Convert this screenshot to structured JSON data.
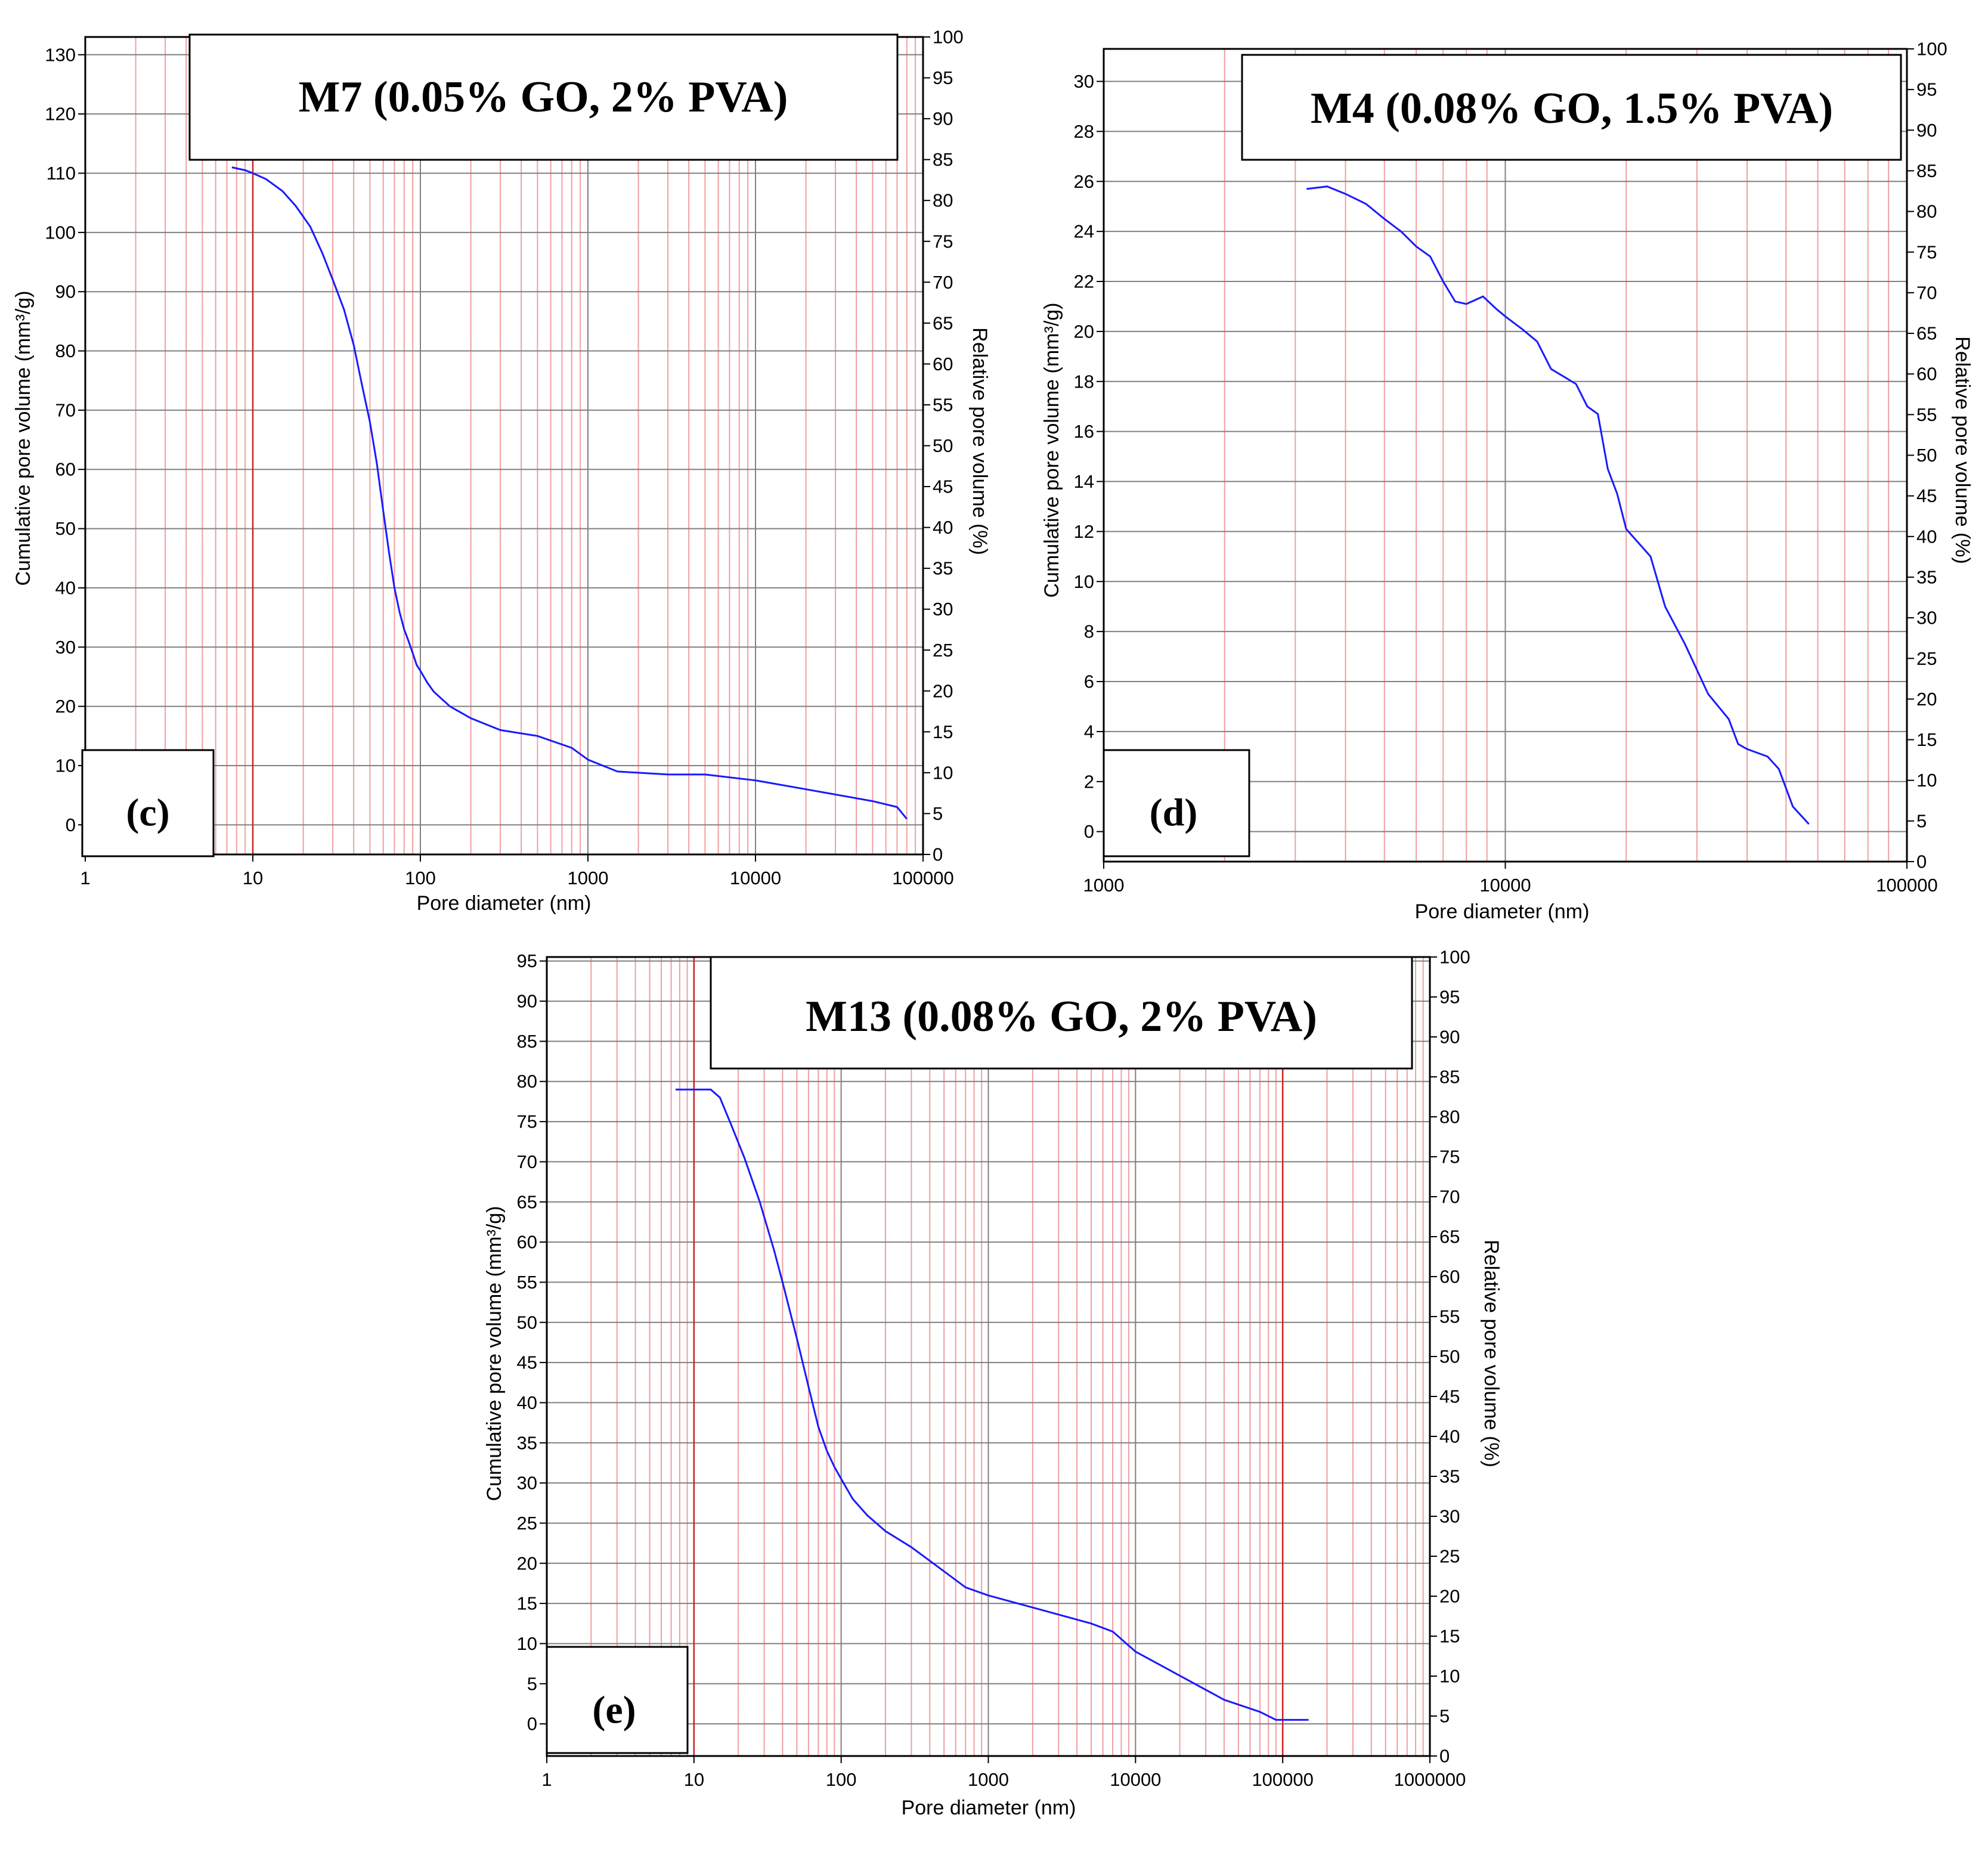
{
  "colors": {
    "curve": "#1a1aff",
    "major_grid": "#808080",
    "minor_grid": "#f0a0a0",
    "highlight_grid": "#cc2222",
    "axis": "#000000",
    "background": "#ffffff"
  },
  "chart_data": [
    {
      "id": "c",
      "type": "line",
      "panel_label": "(c)",
      "title": "M7 (0.05% GO, 2% PVA)",
      "xlabel": "Pore diameter (nm)",
      "ylabel": "Cumulative pore volume (mm³/g)",
      "y2label": "Relative pore volume (%)",
      "xscale": "log",
      "xlim": [
        1,
        100000
      ],
      "ylim": [
        -5,
        133
      ],
      "y2lim": [
        0,
        100
      ],
      "x_ticks": [
        1,
        10,
        100,
        1000,
        10000,
        100000
      ],
      "x_tick_labels": [
        "1",
        "10",
        "100",
        "1000",
        "10000",
        "100000"
      ],
      "y_ticks": [
        0,
        10,
        20,
        30,
        40,
        50,
        60,
        70,
        80,
        90,
        100,
        110,
        120,
        130
      ],
      "y_tick_labels": [
        "0",
        "10",
        "20",
        "30",
        "40",
        "50",
        "60",
        "70",
        "80",
        "90",
        "100",
        "110",
        "120",
        "130"
      ],
      "y2_ticks": [
        0,
        5,
        10,
        15,
        20,
        25,
        30,
        35,
        40,
        45,
        50,
        55,
        60,
        65,
        70,
        75,
        80,
        85,
        90,
        95,
        100
      ],
      "y2_tick_labels": [
        "0",
        "5",
        "10",
        "15",
        "20",
        "25",
        "30",
        "35",
        "40",
        "45",
        "50",
        "55",
        "60",
        "65",
        "70",
        "75",
        "80",
        "85",
        "90",
        "95",
        "100"
      ],
      "highlight_x": [
        10
      ],
      "series": [
        {
          "name": "Cumulative pore volume",
          "x": [
            7.5,
            9,
            10,
            12,
            15,
            18,
            22,
            26,
            30,
            35,
            40,
            45,
            50,
            55,
            60,
            65,
            70,
            75,
            80,
            85,
            90,
            95,
            100,
            110,
            120,
            150,
            200,
            300,
            500,
            800,
            1000,
            1500,
            3000,
            5000,
            10000,
            20000,
            50000,
            70000,
            80000
          ],
          "y": [
            111,
            110.5,
            110,
            109,
            107,
            104.5,
            101,
            96.5,
            92,
            87,
            81,
            74,
            68,
            61,
            53,
            46,
            40,
            36,
            33,
            31,
            29,
            27,
            26,
            24,
            22.5,
            20,
            18,
            16,
            15,
            13,
            11,
            9,
            8.5,
            8.5,
            7.5,
            6,
            4,
            3,
            1
          ]
        }
      ]
    },
    {
      "id": "d",
      "type": "line",
      "panel_label": "(d)",
      "title": "M4 (0.08% GO, 1.5% PVA)",
      "xlabel": "Pore diameter (nm)",
      "ylabel": "Cumulative pore volume (mm³/g)",
      "y2label": "Relative pore volume (%)",
      "xscale": "log",
      "xlim": [
        1000,
        100000
      ],
      "ylim": [
        -1.2,
        31.3
      ],
      "y2lim": [
        0,
        100
      ],
      "x_ticks": [
        1000,
        10000,
        100000
      ],
      "x_tick_labels": [
        "1000",
        "10000",
        "100000"
      ],
      "y_ticks": [
        0,
        2,
        4,
        6,
        8,
        10,
        12,
        14,
        16,
        18,
        20,
        22,
        24,
        26,
        28,
        30
      ],
      "y_tick_labels": [
        "0",
        "2",
        "4",
        "6",
        "8",
        "10",
        "12",
        "14",
        "16",
        "18",
        "20",
        "22",
        "24",
        "26",
        "28",
        "30"
      ],
      "y2_ticks": [
        0,
        5,
        10,
        15,
        20,
        25,
        30,
        35,
        40,
        45,
        50,
        55,
        60,
        65,
        70,
        75,
        80,
        85,
        90,
        95,
        100
      ],
      "y2_tick_labels": [
        "0",
        "5",
        "10",
        "15",
        "20",
        "25",
        "30",
        "35",
        "40",
        "45",
        "50",
        "55",
        "60",
        "65",
        "70",
        "75",
        "80",
        "85",
        "90",
        "95",
        "100"
      ],
      "highlight_x": [],
      "series": [
        {
          "name": "Cumulative pore volume",
          "x": [
            3200,
            3600,
            4000,
            4500,
            5000,
            5500,
            6000,
            6500,
            7000,
            7500,
            8000,
            8800,
            9500,
            10000,
            11000,
            12000,
            13000,
            15000,
            16000,
            17000,
            18000,
            19000,
            20000,
            23000,
            25000,
            28000,
            32000,
            36000,
            38000,
            40000,
            45000,
            48000,
            52000,
            57000
          ],
          "y": [
            25.7,
            25.8,
            25.5,
            25.1,
            24.5,
            24.0,
            23.4,
            23.0,
            22.0,
            21.2,
            21.1,
            21.4,
            20.9,
            20.6,
            20.1,
            19.6,
            18.5,
            17.9,
            17.0,
            16.7,
            14.5,
            13.5,
            12.1,
            11.0,
            9.0,
            7.5,
            5.5,
            4.5,
            3.5,
            3.3,
            3.0,
            2.5,
            1.0,
            0.3
          ]
        }
      ]
    },
    {
      "id": "e",
      "type": "line",
      "panel_label": "(e)",
      "title": "M13 (0.08% GO, 2% PVA)",
      "xlabel": "Pore diameter (nm)",
      "ylabel": "Cumulative pore volume (mm³/g)",
      "y2label": "Relative pore volume (%)",
      "xscale": "log",
      "xlim": [
        1,
        1000000
      ],
      "ylim": [
        -4,
        95.5
      ],
      "y2lim": [
        0,
        100
      ],
      "x_ticks": [
        1,
        10,
        100,
        1000,
        10000,
        100000,
        1000000
      ],
      "x_tick_labels": [
        "1",
        "10",
        "100",
        "1000",
        "10000",
        "100000",
        "1000000"
      ],
      "y_ticks": [
        0,
        5,
        10,
        15,
        20,
        25,
        30,
        35,
        40,
        45,
        50,
        55,
        60,
        65,
        70,
        75,
        80,
        85,
        90,
        95
      ],
      "y_tick_labels": [
        "0",
        "5",
        "10",
        "15",
        "20",
        "25",
        "30",
        "35",
        "40",
        "45",
        "50",
        "55",
        "60",
        "65",
        "70",
        "75",
        "80",
        "85",
        "90",
        "95"
      ],
      "y2_ticks": [
        0,
        5,
        10,
        15,
        20,
        25,
        30,
        35,
        40,
        45,
        50,
        55,
        60,
        65,
        70,
        75,
        80,
        85,
        90,
        95,
        100
      ],
      "y2_tick_labels": [
        "0",
        "5",
        "10",
        "15",
        "20",
        "25",
        "30",
        "35",
        "40",
        "45",
        "50",
        "55",
        "60",
        "65",
        "70",
        "75",
        "80",
        "85",
        "90",
        "95",
        "100"
      ],
      "highlight_x": [
        10,
        100000
      ],
      "series": [
        {
          "name": "Cumulative pore volume",
          "x": [
            7.5,
            10,
            13,
            15,
            18,
            22,
            28,
            35,
            40,
            50,
            60,
            70,
            80,
            90,
            100,
            120,
            150,
            200,
            300,
            500,
            700,
            1000,
            2000,
            5000,
            7000,
            10000,
            20000,
            40000,
            70000,
            90000,
            150000
          ],
          "y": [
            79,
            79,
            79,
            78,
            74.5,
            70.5,
            65,
            59,
            55,
            48,
            42,
            37,
            34,
            32,
            30.5,
            28,
            26,
            24,
            22,
            19,
            17,
            16,
            14.5,
            12.5,
            11.5,
            9,
            6,
            3,
            1.5,
            0.5,
            0.5
          ]
        }
      ]
    }
  ]
}
